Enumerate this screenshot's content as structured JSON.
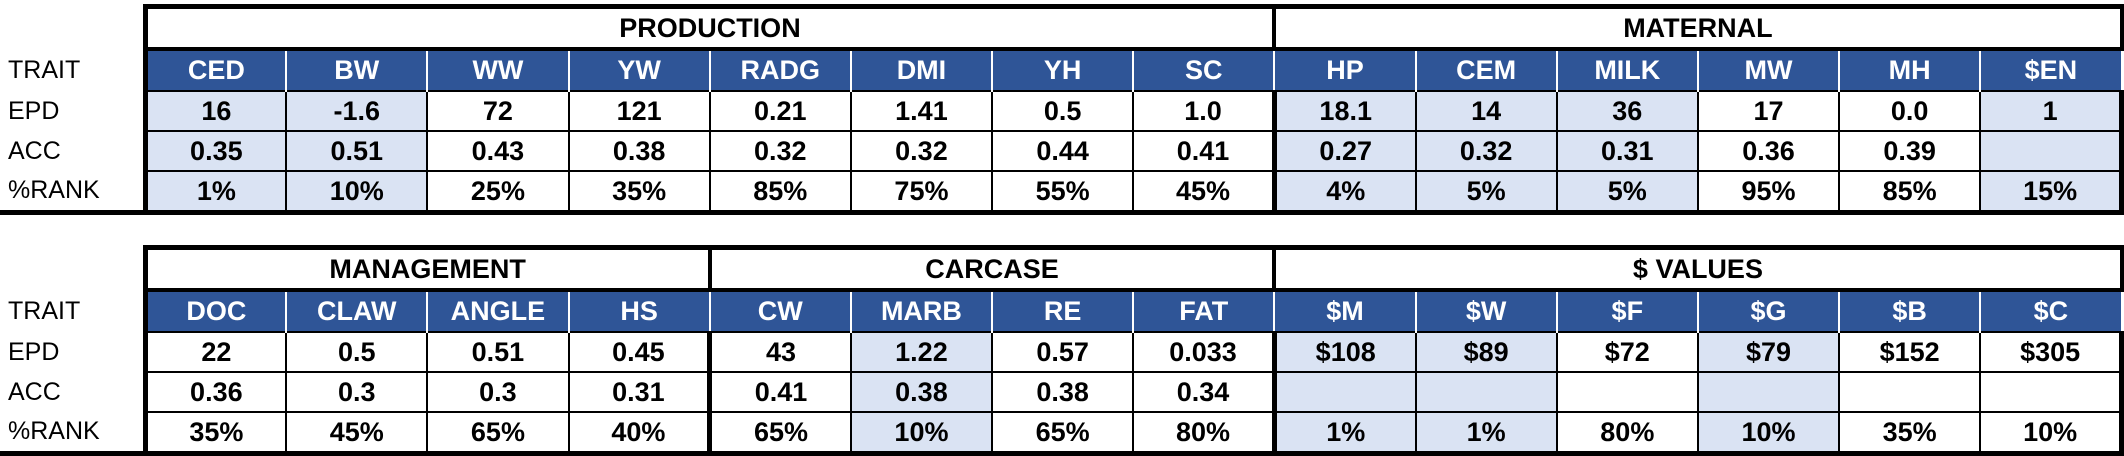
{
  "row_labels": {
    "trait": "TRAIT",
    "epd": "EPD",
    "acc": "ACC",
    "rank": "%RANK"
  },
  "top": {
    "groups": [
      {
        "label": "PRODUCTION",
        "span": 8
      },
      {
        "label": "MATERNAL",
        "span": 6
      }
    ],
    "traits": [
      "CED",
      "BW",
      "WW",
      "YW",
      "RADG",
      "DMI",
      "YH",
      "SC",
      "HP",
      "CEM",
      "MILK",
      "MW",
      "MH",
      "$EN"
    ],
    "epd": [
      "16",
      "-1.6",
      "72",
      "121",
      "0.21",
      "1.41",
      "0.5",
      "1.0",
      "18.1",
      "14",
      "36",
      "17",
      "0.0",
      "1"
    ],
    "acc": [
      "0.35",
      "0.51",
      "0.43",
      "0.38",
      "0.32",
      "0.32",
      "0.44",
      "0.41",
      "0.27",
      "0.32",
      "0.31",
      "0.36",
      "0.39",
      ""
    ],
    "rank": [
      "1%",
      "10%",
      "25%",
      "35%",
      "85%",
      "75%",
      "55%",
      "45%",
      "4%",
      "5%",
      "5%",
      "95%",
      "85%",
      "15%"
    ],
    "shaded": [
      true,
      true,
      false,
      false,
      false,
      false,
      false,
      false,
      true,
      true,
      true,
      false,
      false,
      true
    ]
  },
  "bottom": {
    "groups": [
      {
        "label": "MANAGEMENT",
        "span": 4
      },
      {
        "label": "CARCASE",
        "span": 4
      },
      {
        "label": "$ VALUES",
        "span": 6
      }
    ],
    "traits": [
      "DOC",
      "CLAW",
      "ANGLE",
      "HS",
      "CW",
      "MARB",
      "RE",
      "FAT",
      "$M",
      "$W",
      "$F",
      "$G",
      "$B",
      "$C"
    ],
    "epd": [
      "22",
      "0.5",
      "0.51",
      "0.45",
      "43",
      "1.22",
      "0.57",
      "0.033",
      "$108",
      "$89",
      "$72",
      "$79",
      "$152",
      "$305"
    ],
    "acc": [
      "0.36",
      "0.3",
      "0.3",
      "0.31",
      "0.41",
      "0.38",
      "0.38",
      "0.34",
      "",
      "",
      "",
      "",
      "",
      ""
    ],
    "rank": [
      "35%",
      "45%",
      "65%",
      "40%",
      "65%",
      "10%",
      "65%",
      "80%",
      "1%",
      "1%",
      "80%",
      "10%",
      "35%",
      "10%"
    ],
    "shaded": [
      false,
      false,
      false,
      false,
      false,
      true,
      false,
      false,
      true,
      true,
      false,
      true,
      false,
      false
    ]
  },
  "colors": {
    "header_bg": "#2f5597",
    "header_text": "#ffffff",
    "shaded_cell": "#dae3f3"
  }
}
